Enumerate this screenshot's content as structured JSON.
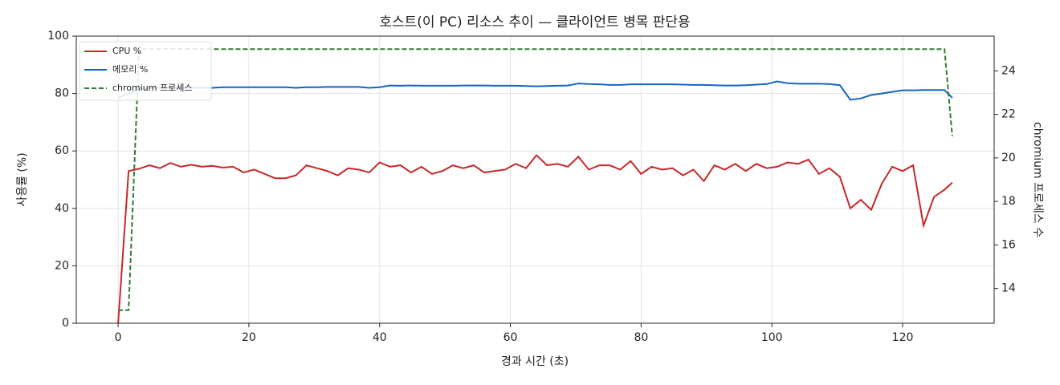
{
  "chart_data": {
    "type": "line",
    "title": "호스트(이 PC) 리소스 추이 — 클라이언트 병목 판단용",
    "xlabel": "경과 시간 (초)",
    "ylabel": "사용률 (%)",
    "y2label": "chromium 프로세스 수",
    "x": [
      0,
      1.6,
      3.2,
      4.8,
      6.4,
      8,
      9.6,
      11.2,
      12.8,
      14.4,
      16,
      17.6,
      19.2,
      20.8,
      22.4,
      24,
      25.6,
      27.2,
      28.8,
      30.4,
      32,
      33.6,
      35.2,
      36.8,
      38.4,
      40,
      41.6,
      43.2,
      44.8,
      46.4,
      48,
      49.6,
      51.2,
      52.8,
      54.4,
      56,
      57.6,
      59.2,
      60.8,
      62.4,
      64,
      65.6,
      67.2,
      68.8,
      70.4,
      72,
      73.6,
      75.2,
      76.8,
      78.4,
      80,
      81.6,
      83.2,
      84.8,
      86.4,
      88,
      89.6,
      91.2,
      92.8,
      94.4,
      96,
      97.6,
      99.2,
      100.8,
      102.4,
      104,
      105.6,
      107.2,
      108.8,
      110.4,
      112,
      113.6,
      115.2,
      116.8,
      118.4,
      120,
      121.6,
      123.2,
      124.8,
      126.4,
      127.6
    ],
    "series": [
      {
        "name": "CPU %",
        "color": "#c62828",
        "linestyle": "solid",
        "values": [
          0,
          53,
          53.8,
          55,
          54,
          55.8,
          54.5,
          55.2,
          54.5,
          54.8,
          54.2,
          54.5,
          52.5,
          53.5,
          52,
          50.5,
          50.5,
          51.5,
          55,
          54,
          53,
          51.5,
          54,
          53.5,
          52.5,
          56,
          54.5,
          55,
          52.5,
          54.5,
          52,
          53,
          55,
          54,
          55,
          52.5,
          53,
          53.5,
          55.5,
          54,
          58.5,
          55,
          55.5,
          54.5,
          58,
          53.5,
          55,
          55,
          53.5,
          56.5,
          52,
          54.5,
          53.5,
          54,
          51.5,
          53.5,
          49.5,
          55,
          53.5,
          55.5,
          53,
          55.5,
          54,
          54.5,
          56,
          55.5,
          57,
          52,
          54,
          51,
          40,
          43,
          39.5,
          48.5,
          54.5,
          53,
          55,
          34,
          44,
          46.5,
          49
        ]
      },
      {
        "name": "메모리 %",
        "color": "#1565c0",
        "linestyle": "solid",
        "values": [
          78.5,
          80,
          81.5,
          82,
          82,
          82,
          82,
          82,
          82,
          82,
          82.2,
          82.2,
          82.2,
          82.2,
          82.2,
          82.2,
          82.2,
          82,
          82.2,
          82.2,
          82.3,
          82.3,
          82.3,
          82.3,
          82,
          82.2,
          82.8,
          82.7,
          82.8,
          82.7,
          82.7,
          82.7,
          82.7,
          82.8,
          82.8,
          82.8,
          82.7,
          82.7,
          82.7,
          82.6,
          82.5,
          82.6,
          82.7,
          82.8,
          83.5,
          83.3,
          83.2,
          83,
          83,
          83.2,
          83.2,
          83.2,
          83.2,
          83.2,
          83.1,
          83,
          83,
          82.9,
          82.8,
          82.8,
          82.9,
          83.1,
          83.3,
          84.2,
          83.6,
          83.4,
          83.4,
          83.4,
          83.3,
          82.9,
          77.8,
          78.3,
          79.5,
          80,
          80.6,
          81.1,
          81.1,
          81.2,
          81.2,
          81.2,
          78.5
        ]
      },
      {
        "name": "chromium 프로세스",
        "color": "#2e7d32",
        "linestyle": "dashed",
        "axis": "y2",
        "values": [
          13,
          13,
          25,
          25,
          25,
          25,
          25,
          25,
          25,
          25,
          25,
          25,
          25,
          25,
          25,
          25,
          25,
          25,
          25,
          25,
          25,
          25,
          25,
          25,
          25,
          25,
          25,
          25,
          25,
          25,
          25,
          25,
          25,
          25,
          25,
          25,
          25,
          25,
          25,
          25,
          25,
          25,
          25,
          25,
          25,
          25,
          25,
          25,
          25,
          25,
          25,
          25,
          25,
          25,
          25,
          25,
          25,
          25,
          25,
          25,
          25,
          25,
          25,
          25,
          25,
          25,
          25,
          25,
          25,
          25,
          25,
          25,
          25,
          25,
          25,
          25,
          25,
          25,
          25,
          25,
          21
        ]
      }
    ],
    "xlim": [
      -6.4,
      134
    ],
    "xticks": [
      0,
      20,
      40,
      60,
      80,
      100,
      120
    ],
    "ylim": [
      0,
      100
    ],
    "yticks": [
      0,
      20,
      40,
      60,
      80,
      100
    ],
    "y2lim": [
      12.4,
      25.6
    ],
    "y2ticks": [
      14,
      16,
      18,
      20,
      22,
      24
    ],
    "grid": true,
    "legend": "upper left"
  }
}
